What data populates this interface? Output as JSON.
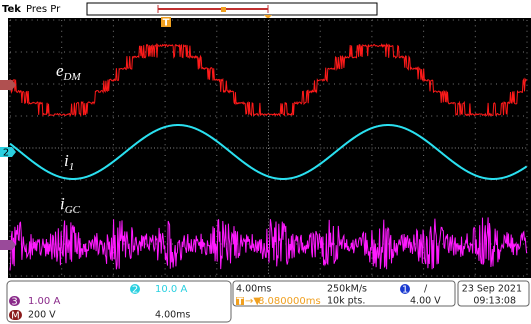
{
  "header": {
    "brand": "Tek",
    "status": "Pres Pr"
  },
  "labels": [
    {
      "base": "e",
      "sub": "DM"
    },
    {
      "base": "i",
      "sub": "1"
    },
    {
      "base": "i",
      "sub": "GC"
    }
  ],
  "channels": [
    {
      "number": "1"
    },
    {
      "number": "2",
      "scale": "10.0 A"
    },
    {
      "number": "3",
      "scale": "1.00 A"
    },
    {
      "number": "M",
      "scale": "200 V",
      "timebase": "4.00ms"
    }
  ],
  "timebase": {
    "scale": "4.00ms",
    "sample_rate": "250kM/s",
    "record_length": "10k pts."
  },
  "trigger": {
    "marker": "T",
    "arrow": "→▼",
    "position": "8.080000ms",
    "slope": "/",
    "level": "4.00 V"
  },
  "footer": {
    "date": "23 Sep 2021",
    "time": "09:13:08"
  }
}
